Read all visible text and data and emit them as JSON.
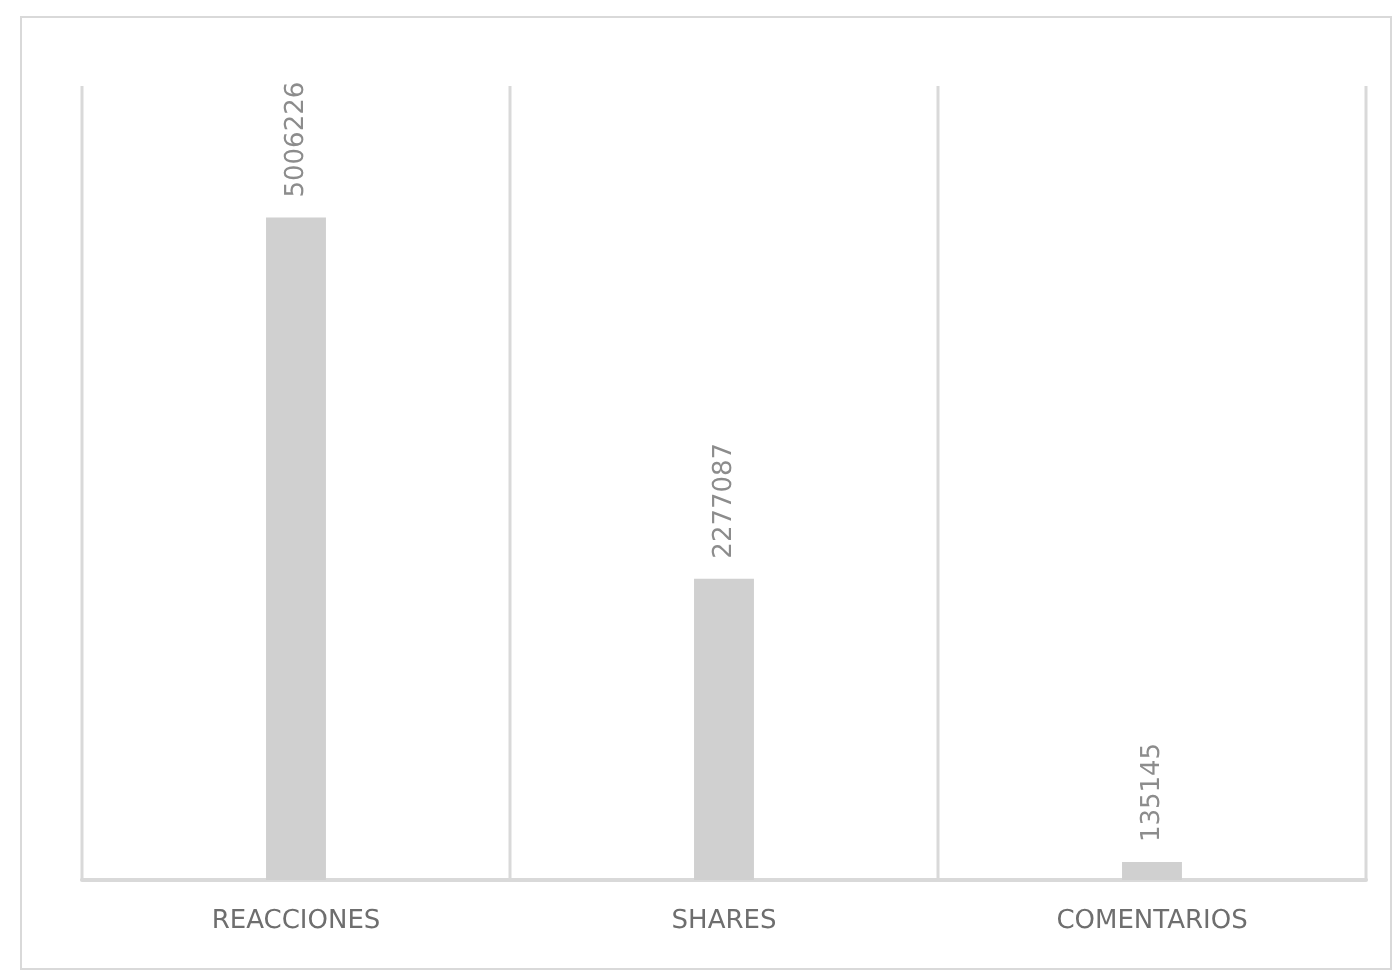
{
  "chart_data": {
    "type": "bar",
    "categories": [
      "REACCIONES",
      "SHARES",
      "COMENTARIOS"
    ],
    "values": [
      5006226,
      2277087,
      135145
    ],
    "color": "#d0d0d0",
    "ylim": [
      0,
      6000000
    ],
    "data_labels": true,
    "grid": "x",
    "tick_labels": "x"
  }
}
